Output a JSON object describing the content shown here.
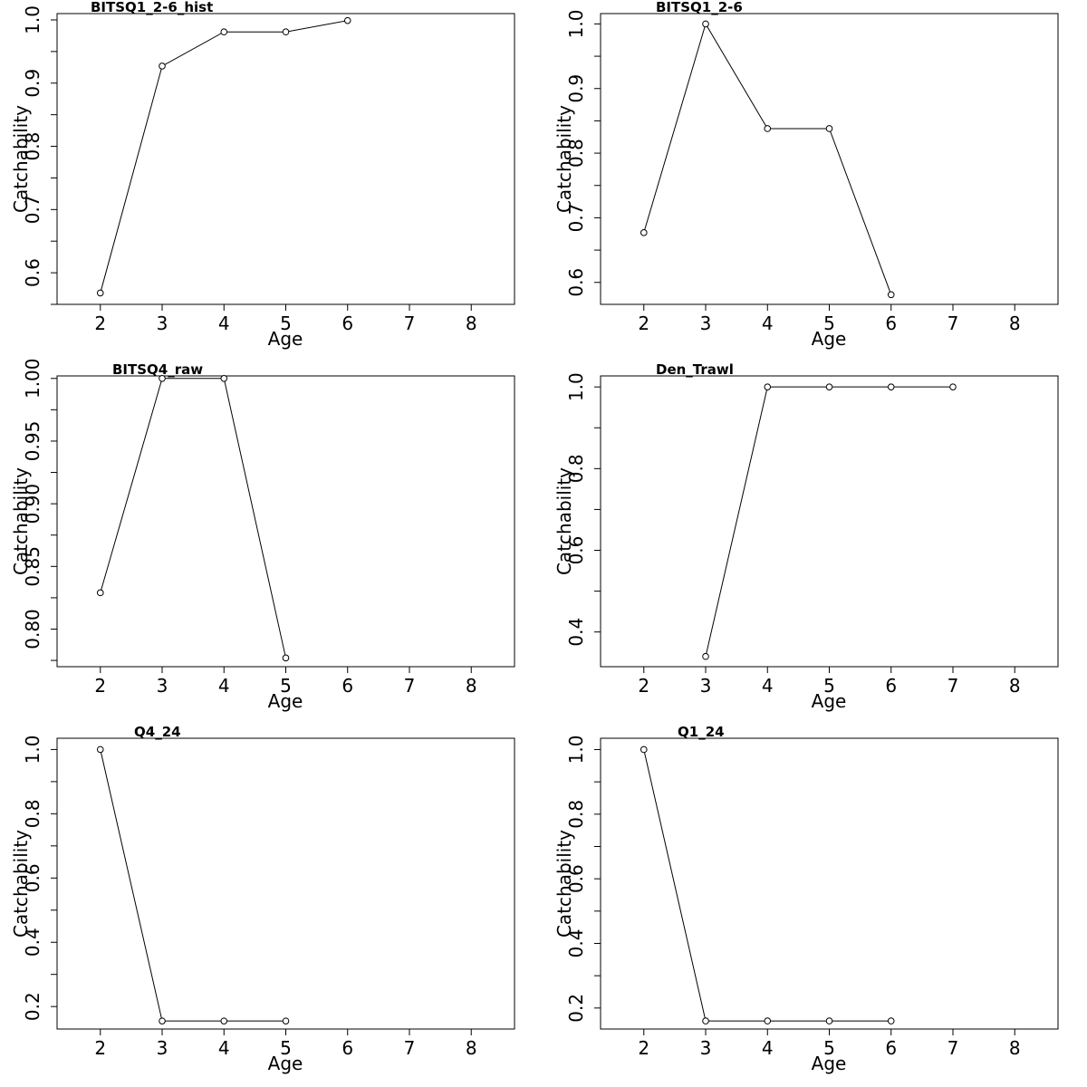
{
  "chart_data": [
    {
      "type": "line",
      "title": "BITSQ1_2-6_hist",
      "xlabel": "Age",
      "ylabel": "Catchability",
      "xlim": [
        1.3,
        8.7
      ],
      "ylim": [
        0.55,
        1.01
      ],
      "xticks": [
        "2",
        "3",
        "4",
        "5",
        "6",
        "7",
        "8"
      ],
      "yticks": [
        "0.6",
        "0.7",
        "0.8",
        "0.9",
        "1.0"
      ],
      "x": [
        2,
        3,
        4,
        5,
        6
      ],
      "y": [
        0.568,
        0.927,
        0.981,
        0.981,
        0.999
      ]
    },
    {
      "type": "line",
      "title": "BITSQ1_2-6",
      "xlabel": "Age",
      "ylabel": "Catchability",
      "xlim": [
        1.3,
        8.7
      ],
      "ylim": [
        0.566,
        1.016
      ],
      "xticks": [
        "2",
        "3",
        "4",
        "5",
        "6",
        "7",
        "8"
      ],
      "yticks": [
        "0.6",
        "0.7",
        "0.8",
        "0.9",
        "1.0"
      ],
      "x": [
        2,
        3,
        4,
        5,
        6
      ],
      "y": [
        0.677,
        1.0,
        0.838,
        0.838,
        0.581
      ]
    },
    {
      "type": "line",
      "title": "BITSQ4_raw",
      "xlabel": "Age",
      "ylabel": "Catchability",
      "xlim": [
        1.3,
        8.7
      ],
      "ylim": [
        0.77,
        1.002
      ],
      "xticks": [
        "2",
        "3",
        "4",
        "5",
        "6",
        "7",
        "8"
      ],
      "yticks": [
        "0.80",
        "0.85",
        "0.90",
        "0.95",
        "1.00"
      ],
      "x": [
        2,
        3,
        4,
        5
      ],
      "y": [
        0.829,
        1.0,
        1.0,
        0.777
      ]
    },
    {
      "type": "line",
      "title": "Den_Trawl",
      "xlabel": "Age",
      "ylabel": "Catchability",
      "xlim": [
        1.3,
        8.7
      ],
      "ylim": [
        0.315,
        1.027
      ],
      "xticks": [
        "2",
        "3",
        "4",
        "5",
        "6",
        "7",
        "8"
      ],
      "yticks": [
        "0.4",
        "0.6",
        "0.8",
        "1.0"
      ],
      "x": [
        3,
        4,
        5,
        6,
        7
      ],
      "y": [
        0.34,
        1.0,
        1.0,
        1.0,
        1.0
      ]
    },
    {
      "type": "line",
      "title": "Q4_24",
      "xlabel": "Age",
      "ylabel": "Catchability",
      "xlim": [
        1.3,
        8.7
      ],
      "ylim": [
        0.13,
        1.035
      ],
      "xticks": [
        "2",
        "3",
        "4",
        "5",
        "6",
        "7",
        "8"
      ],
      "yticks": [
        "0.2",
        "0.4",
        "0.6",
        "0.8",
        "1.0"
      ],
      "x": [
        2,
        3,
        4,
        5
      ],
      "y": [
        1.0,
        0.155,
        0.155,
        0.155
      ]
    },
    {
      "type": "line",
      "title": "Q1_24",
      "xlabel": "Age",
      "ylabel": "Catchability",
      "xlim": [
        1.3,
        8.7
      ],
      "ylim": [
        0.135,
        1.035
      ],
      "xticks": [
        "2",
        "3",
        "4",
        "5",
        "6",
        "7",
        "8"
      ],
      "yticks": [
        "0.2",
        "0.4",
        "0.6",
        "0.8",
        "1.0"
      ],
      "x": [
        2,
        3,
        4,
        5,
        6
      ],
      "y": [
        1.0,
        0.16,
        0.16,
        0.16,
        0.16
      ]
    }
  ]
}
